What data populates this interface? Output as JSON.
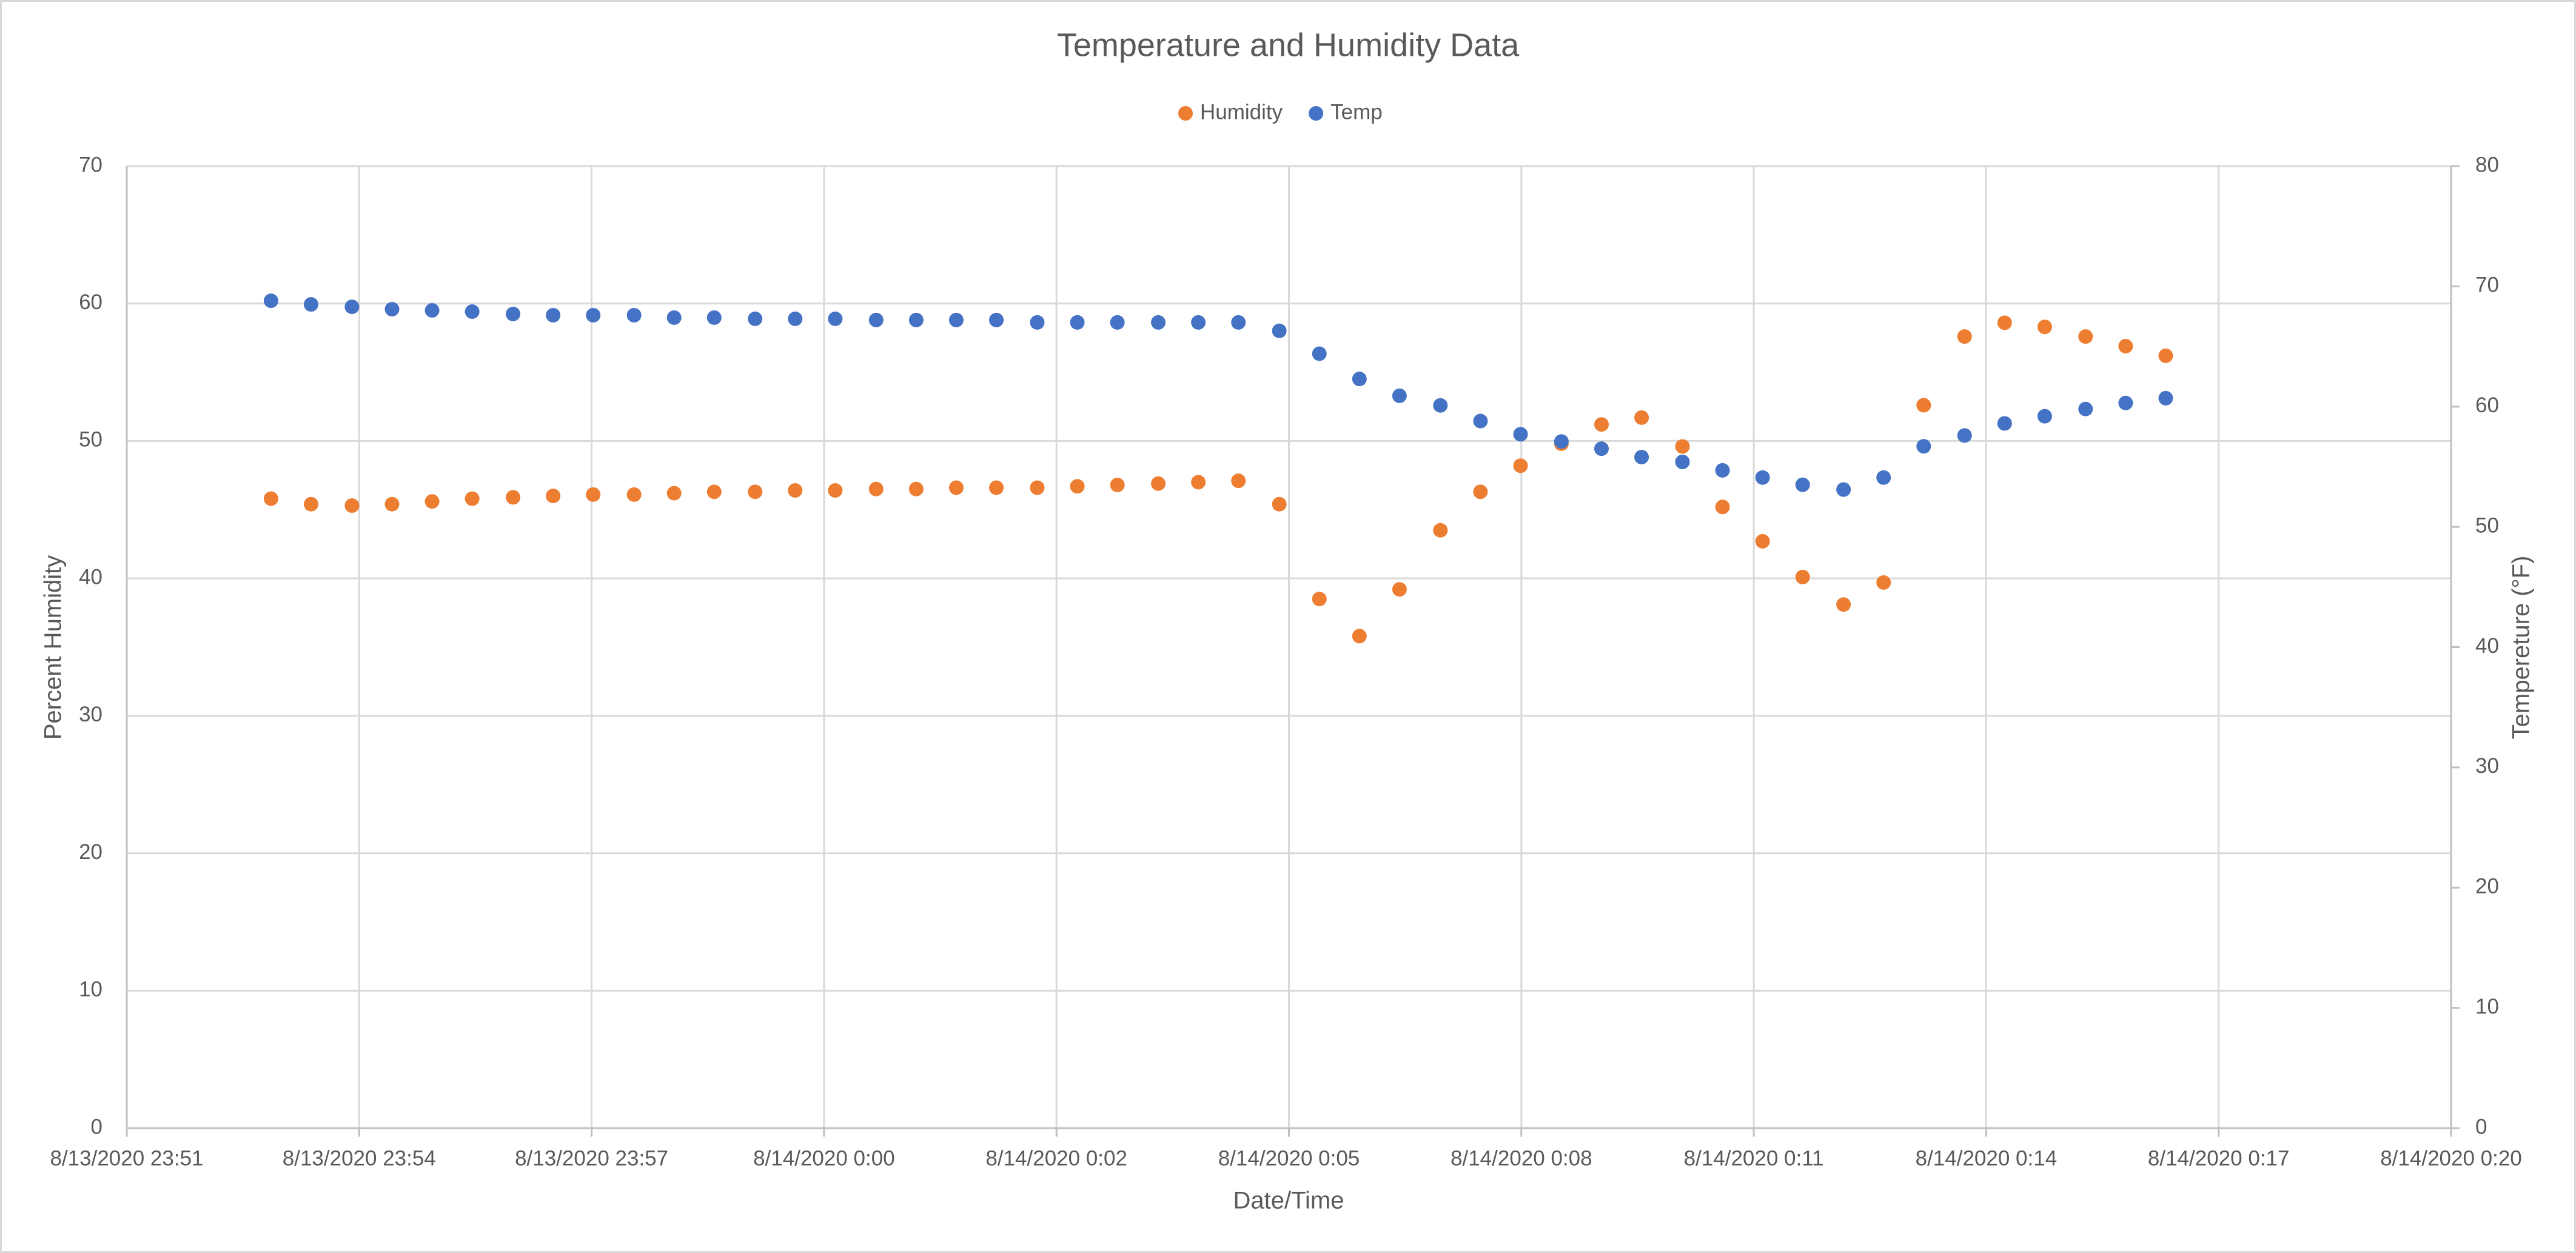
{
  "chart_data": {
    "type": "scatter",
    "title": "Temperature and Humidity Data",
    "x_label": "Date/Time",
    "y_label": "Percent Humidity",
    "y2_label": "Tempereture (°F)",
    "x": [
      -7.2,
      -6.7,
      -6.19,
      -5.69,
      -5.19,
      -4.69,
      -4.18,
      -3.68,
      -3.18,
      -2.67,
      -2.17,
      -1.67,
      -1.16,
      -0.66,
      -0.16,
      0.35,
      0.85,
      1.35,
      1.85,
      2.36,
      2.86,
      3.36,
      3.87,
      4.37,
      4.87,
      5.38,
      5.88,
      6.38,
      6.88,
      7.39,
      7.89,
      8.39,
      8.9,
      9.4,
      9.9,
      10.41,
      10.91,
      11.41,
      11.91,
      12.42,
      12.92,
      13.42,
      13.93,
      14.43,
      14.93,
      15.44,
      15.94,
      16.44
    ],
    "series": [
      {
        "name": "Humidity",
        "color": "#ed7d31",
        "axis": "y",
        "values": [
          45.8,
          45.4,
          45.3,
          45.4,
          45.6,
          45.8,
          45.9,
          46.0,
          46.1,
          46.1,
          46.2,
          46.3,
          46.3,
          46.4,
          46.4,
          46.5,
          46.5,
          46.6,
          46.6,
          46.6,
          46.7,
          46.8,
          46.9,
          47.0,
          47.1,
          45.4,
          38.5,
          35.8,
          39.2,
          43.5,
          46.3,
          48.2,
          49.8,
          51.2,
          51.7,
          49.6,
          45.2,
          42.7,
          40.1,
          38.1,
          39.7,
          52.6,
          57.6,
          58.6,
          58.3,
          57.6,
          56.9,
          56.2
        ]
      },
      {
        "name": "Temp",
        "color": "#4472c4",
        "axis": "y2",
        "values": [
          68.8,
          68.5,
          68.3,
          68.1,
          68.0,
          67.9,
          67.7,
          67.6,
          67.6,
          67.6,
          67.4,
          67.4,
          67.3,
          67.3,
          67.3,
          67.2,
          67.2,
          67.2,
          67.2,
          67.0,
          67.0,
          67.0,
          67.0,
          67.0,
          67.0,
          66.3,
          64.4,
          62.3,
          60.9,
          60.1,
          58.8,
          57.7,
          57.1,
          56.5,
          55.8,
          55.4,
          54.7,
          54.1,
          53.5,
          53.1,
          54.1,
          56.7,
          57.6,
          58.6,
          59.2,
          59.8,
          60.3,
          60.7
        ]
      }
    ],
    "xlim": [
      -9,
      20
    ],
    "xticks": [
      {
        "value": -9,
        "label": "8/13/2020 23:51"
      },
      {
        "value": -6.1,
        "label": "8/13/2020 23:54"
      },
      {
        "value": -3.2,
        "label": "8/13/2020 23:57"
      },
      {
        "value": -0.3,
        "label": "8/14/2020 0:00"
      },
      {
        "value": 2.6,
        "label": "8/14/2020 0:02"
      },
      {
        "value": 5.5,
        "label": "8/14/2020 0:05"
      },
      {
        "value": 8.4,
        "label": "8/14/2020 0:08"
      },
      {
        "value": 11.3,
        "label": "8/14/2020 0:11"
      },
      {
        "value": 14.2,
        "label": "8/14/2020 0:14"
      },
      {
        "value": 17.1,
        "label": "8/14/2020 0:17"
      },
      {
        "value": 20,
        "label": "8/14/2020 0:20"
      }
    ],
    "ylim": [
      0,
      70
    ],
    "yticks": [
      0,
      10,
      20,
      30,
      40,
      50,
      60,
      70
    ],
    "y2lim": [
      0,
      80
    ],
    "y2ticks": [
      0,
      10,
      20,
      30,
      40,
      50,
      60,
      70,
      80
    ],
    "grid": true,
    "legend": "top"
  }
}
